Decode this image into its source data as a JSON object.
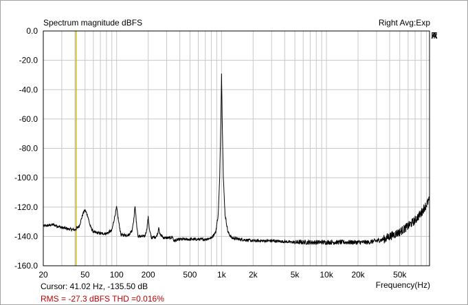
{
  "chart_data": {
    "type": "line",
    "title": "Spectrum magnitude dBFS",
    "subtitle": "Right Avg:Exp",
    "brand": "ARTA",
    "xlabel": "Frequency(Hz)",
    "ylabel": "",
    "x_scale": "log",
    "xlim": [
      20,
      96000
    ],
    "ylim": [
      -160,
      0
    ],
    "grid": true,
    "x_ticks": [
      {
        "value": 20,
        "label": "20"
      },
      {
        "value": 50,
        "label": "50"
      },
      {
        "value": 100,
        "label": "100"
      },
      {
        "value": 200,
        "label": "200"
      },
      {
        "value": 500,
        "label": "500"
      },
      {
        "value": 1000,
        "label": "1k"
      },
      {
        "value": 2000,
        "label": "2k"
      },
      {
        "value": 5000,
        "label": "5k"
      },
      {
        "value": 10000,
        "label": "10k"
      },
      {
        "value": 20000,
        "label": "20k"
      },
      {
        "value": 50000,
        "label": "50k"
      }
    ],
    "y_ticks": [
      {
        "value": 0,
        "label": "0.0"
      },
      {
        "value": -20,
        "label": "-20.0"
      },
      {
        "value": -40,
        "label": "-40.0"
      },
      {
        "value": -60,
        "label": "-60.0"
      },
      {
        "value": -80,
        "label": "-80.0"
      },
      {
        "value": -100,
        "label": "-100.0"
      },
      {
        "value": -120,
        "label": "-120.0"
      },
      {
        "value": -140,
        "label": "-140.0"
      },
      {
        "value": -160,
        "label": "-160.0"
      }
    ],
    "cursor_x": 41.02,
    "series": [
      {
        "values": [
          [
            20,
            -133
          ],
          [
            25,
            -132
          ],
          [
            30,
            -134
          ],
          [
            35,
            -135
          ],
          [
            40,
            -135.5
          ],
          [
            44,
            -133
          ],
          [
            48,
            -124
          ],
          [
            50,
            -122
          ],
          [
            53,
            -126
          ],
          [
            56,
            -133
          ],
          [
            60,
            -137
          ],
          [
            70,
            -138
          ],
          [
            80,
            -138
          ],
          [
            90,
            -136
          ],
          [
            95,
            -128
          ],
          [
            100,
            -120
          ],
          [
            104,
            -129
          ],
          [
            110,
            -139
          ],
          [
            130,
            -139
          ],
          [
            140,
            -136
          ],
          [
            146,
            -128
          ],
          [
            150,
            -119
          ],
          [
            154,
            -130
          ],
          [
            160,
            -140
          ],
          [
            185,
            -140
          ],
          [
            193,
            -136
          ],
          [
            200,
            -127
          ],
          [
            206,
            -136
          ],
          [
            215,
            -141
          ],
          [
            240,
            -140
          ],
          [
            248,
            -137
          ],
          [
            252,
            -133
          ],
          [
            256,
            -138
          ],
          [
            280,
            -141
          ],
          [
            330,
            -141
          ],
          [
            340,
            -140
          ],
          [
            350,
            -143
          ],
          [
            400,
            -142
          ],
          [
            500,
            -142
          ],
          [
            600,
            -142
          ],
          [
            700,
            -142
          ],
          [
            800,
            -141
          ],
          [
            880,
            -137
          ],
          [
            930,
            -125
          ],
          [
            960,
            -100
          ],
          [
            985,
            -60
          ],
          [
            1000,
            -29
          ],
          [
            1015,
            -60
          ],
          [
            1040,
            -100
          ],
          [
            1080,
            -125
          ],
          [
            1150,
            -137
          ],
          [
            1250,
            -141
          ],
          [
            1500,
            -142
          ],
          [
            2000,
            -143
          ],
          [
            3000,
            -143
          ],
          [
            5000,
            -144
          ],
          [
            8000,
            -144
          ],
          [
            12000,
            -144
          ],
          [
            20000,
            -144
          ],
          [
            25000,
            -144
          ],
          [
            30000,
            -143
          ],
          [
            35000,
            -142
          ],
          [
            40000,
            -140
          ],
          [
            50000,
            -137
          ],
          [
            60000,
            -133
          ],
          [
            70000,
            -129
          ],
          [
            80000,
            -124
          ],
          [
            90000,
            -118
          ],
          [
            96000,
            -115
          ]
        ]
      }
    ],
    "colors": {
      "curve": "#000000",
      "grid": "#c8c8c8",
      "cursor": "#c8b400",
      "rms_text": "#c00000"
    }
  },
  "status": {
    "cursor": "Cursor: 41.02 Hz, -135.50 dB",
    "rms": "RMS =  -27.3 dBFS    THD =0.016%"
  }
}
